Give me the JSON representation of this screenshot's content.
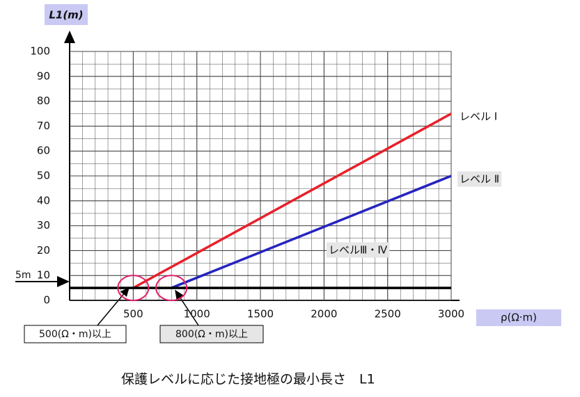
{
  "chart_data": {
    "type": "line",
    "title": "保護レベルに応じた接地極の最小長さ　L1",
    "y_label": "L1(m)",
    "x_label": "ρ(Ω·m)",
    "xlim": [
      0,
      3000
    ],
    "xticks": [
      500,
      1000,
      1500,
      2000,
      2500,
      3000
    ],
    "ylim": [
      0,
      100
    ],
    "yticks": [
      0,
      10,
      20,
      30,
      40,
      50,
      60,
      70,
      80,
      90,
      100
    ],
    "grid": true,
    "series": [
      {
        "name": "レベル Ⅰ",
        "color": "#e8202a",
        "x": [
          500,
          3000
        ],
        "values": [
          5,
          75
        ]
      },
      {
        "name": "レベル Ⅱ",
        "color": "#2424c0",
        "x": [
          800,
          3000
        ],
        "values": [
          5,
          50
        ]
      },
      {
        "name": "レベルⅢ・Ⅳ",
        "color": "#000000",
        "x": [
          0,
          3000
        ],
        "values": [
          5,
          5
        ]
      }
    ],
    "annotations": [
      "5m",
      "500(Ω・m)以上",
      "800(Ω・m)以上"
    ]
  }
}
